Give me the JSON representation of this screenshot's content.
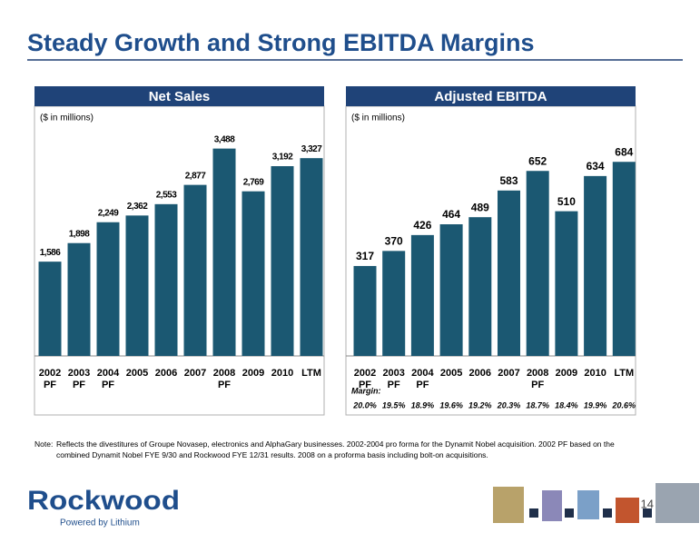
{
  "title": "Steady Growth and Strong EBITDA Margins",
  "note_label": "Note:",
  "note": "Reflects the divestitures of Groupe Novasep, electronics and AlphaGary businesses. 2002-2004 pro forma for the Dynamit Nobel acquisition. 2002 PF based on the combined Dynamit Nobel FYE 9/30 and Rockwood FYE 12/31 results. 2008 on a proforma basis including bolt-on acquisitions.",
  "logo": {
    "name": "Rockwood",
    "tagline": "Powered by Lithium"
  },
  "page_number": "14",
  "chart_data": [
    {
      "type": "bar",
      "title": "Net Sales",
      "subtitle": "($ in millions)",
      "categories": [
        "2002 PF",
        "2003 PF",
        "2004 PF",
        "2005",
        "2006",
        "2007",
        "2008 PF",
        "2009",
        "2010",
        "LTM"
      ],
      "values": [
        1586,
        1898,
        2249,
        2362,
        2553,
        2877,
        3488,
        2769,
        3192,
        3327
      ],
      "value_labels": [
        "1,586",
        "1,898",
        "2,249",
        "2,362",
        "2,553",
        "2,877",
        "3,488",
        "2,769",
        "3,192",
        "3,327"
      ],
      "color": "#1b5872",
      "ylim": [
        0,
        4200
      ]
    },
    {
      "type": "bar",
      "title": "Adjusted EBITDA",
      "subtitle": "($ in millions)",
      "categories": [
        "2002 PF",
        "2003 PF",
        "2004 PF",
        "2005",
        "2006",
        "2007",
        "2008 PF",
        "2009",
        "2010",
        "LTM"
      ],
      "values": [
        317,
        370,
        426,
        464,
        489,
        583,
        652,
        510,
        634,
        684
      ],
      "color": "#1b5872",
      "ylim": [
        0,
        880
      ],
      "margins": {
        "name": "Margin:",
        "values": [
          20.0,
          19.5,
          18.9,
          19.6,
          19.2,
          20.3,
          18.7,
          18.4,
          19.9,
          20.6
        ],
        "value_labels": [
          "20.0%",
          "19.5%",
          "18.9%",
          "19.6%",
          "19.2%",
          "20.3%",
          "18.7%",
          "18.4%",
          "19.9%",
          "20.6%"
        ]
      }
    }
  ]
}
